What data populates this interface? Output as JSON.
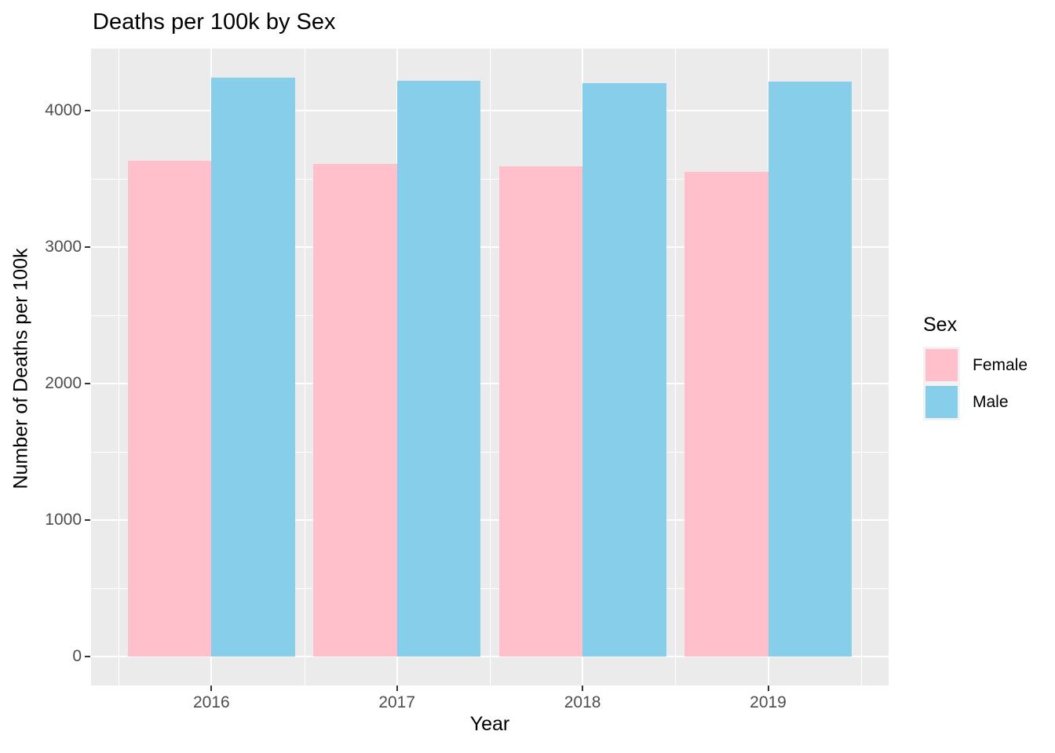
{
  "chart_data": {
    "type": "bar",
    "bar_layout": "grouped",
    "title": "Deaths per 100k by Sex",
    "xlabel": "Year",
    "ylabel": "Number of Deaths per 100k",
    "legend_title": "Sex",
    "legend_position": "right",
    "categories": [
      "2016",
      "2017",
      "2018",
      "2019"
    ],
    "series": [
      {
        "name": "Female",
        "color": "#FFC0CB",
        "values": [
          3630,
          3610,
          3590,
          3550
        ]
      },
      {
        "name": "Male",
        "color": "#87CEEB",
        "values": [
          4240,
          4220,
          4200,
          4210
        ]
      }
    ],
    "yticks": [
      0,
      1000,
      2000,
      3000,
      4000
    ],
    "ytick_labels": [
      "0",
      "1000",
      "2000",
      "3000",
      "4000"
    ],
    "ylim": [
      0,
      4460
    ],
    "grid": "white major and minor gridlines on gray panel"
  },
  "theme": {
    "plot_bg": "#FFFFFF",
    "panel_bg": "#EBEBEB",
    "grid_color": "#FFFFFF",
    "tick_label_color": "#4D4D4D",
    "text_color": "#000000",
    "tick_mark_color": "#333333",
    "legend_key_bg": "#F2F2F2"
  }
}
